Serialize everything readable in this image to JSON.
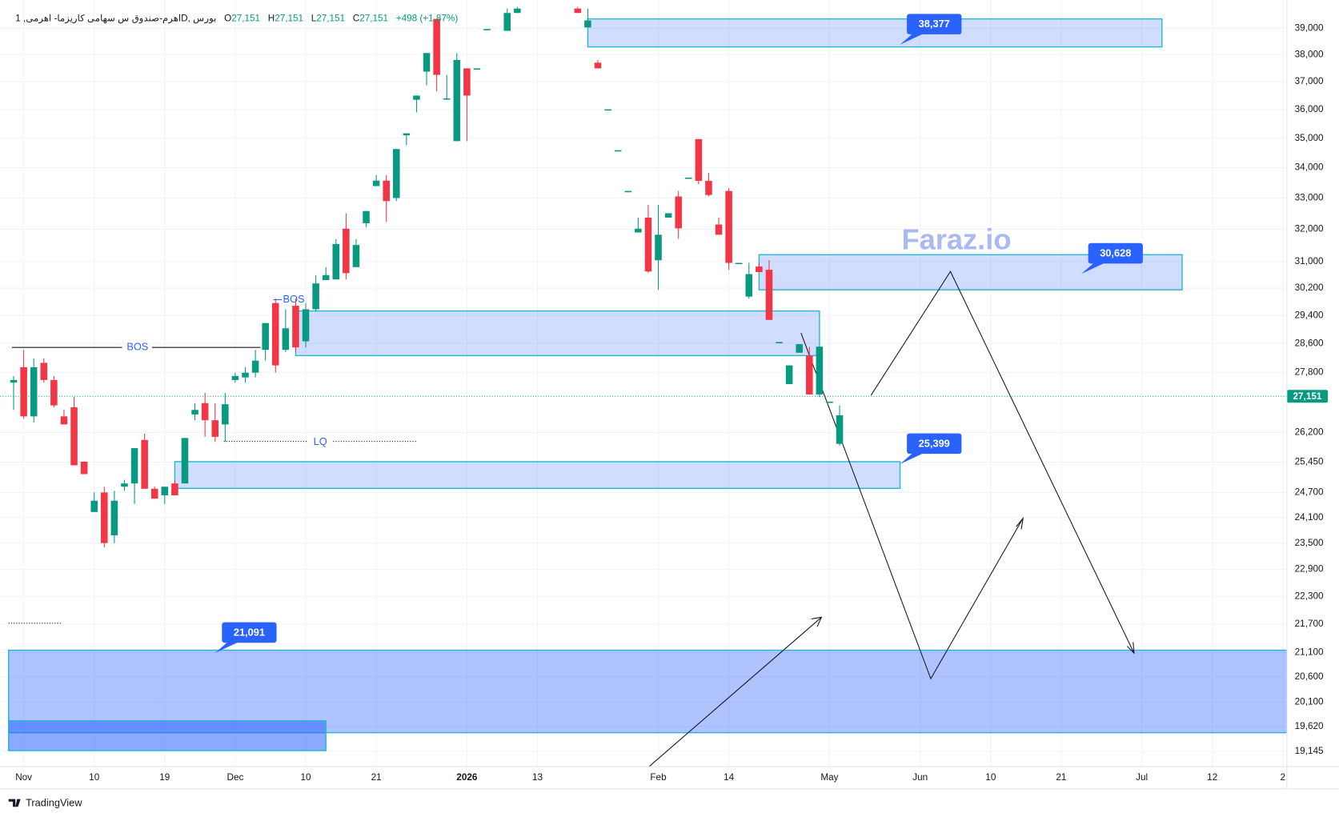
{
  "chart_data": {
    "type": "candlestick",
    "header": {
      "symbol": "اهرم-صندوق س سهامی کاریزما- اهرمی, 1D, بورس",
      "ohlc": [
        {
          "key": "O",
          "value": "27,151"
        },
        {
          "key": "H",
          "value": "27,151"
        },
        {
          "key": "L",
          "value": "27,151"
        },
        {
          "key": "C",
          "value": "27,151"
        }
      ],
      "change": "+498 (+1.87%)"
    },
    "up_color": "#089981",
    "down_color": "#f23645",
    "x": [
      0,
      1,
      2,
      3,
      4,
      5,
      6,
      7,
      8,
      9,
      10,
      11,
      12,
      13,
      14,
      15,
      16,
      17,
      18,
      19,
      20,
      21,
      22,
      23,
      24,
      25,
      26,
      27,
      28,
      29,
      30,
      31,
      32,
      33,
      34,
      35,
      36,
      37,
      38,
      39,
      40,
      41,
      42,
      43,
      44,
      45,
      46,
      47,
      49,
      50,
      56,
      57,
      58,
      59,
      60,
      61,
      62,
      63,
      64,
      65,
      66,
      67,
      68,
      69,
      70,
      71,
      72,
      73,
      74,
      75,
      76,
      77,
      78,
      79,
      80,
      81,
      82
    ],
    "open": [
      27520,
      27940,
      26620,
      28060,
      27590,
      26620,
      26860,
      25460,
      24230,
      24700,
      23680,
      24840,
      24920,
      26010,
      24790,
      24630,
      24920,
      24920,
      26670,
      26970,
      26520,
      26410,
      27590,
      27660,
      27790,
      28420,
      29760,
      28420,
      29680,
      28660,
      29580,
      30440,
      30460,
      32020,
      30830,
      32190,
      33390,
      33570,
      33000,
      35100,
      36350,
      37370,
      39360,
      36400,
      34900,
      37490,
      37490,
      38970,
      38900,
      39590,
      39760,
      39030,
      37700,
      36010,
      34590,
      33230,
      31900,
      32370,
      31040,
      32370,
      33050,
      33670,
      34970,
      33560,
      32150,
      33230,
      30960,
      29950,
      30850,
      30750,
      28640,
      27480,
      28340,
      28260,
      27200,
      27010,
      25910
    ],
    "high": [
      27700,
      28420,
      28180,
      28180,
      27700,
      26790,
      27130,
      25460,
      24700,
      24840,
      24740,
      25010,
      25800,
      26170,
      24840,
      24840,
      25010,
      26060,
      26970,
      27240,
      26970,
      27240,
      27790,
      27940,
      28420,
      29180,
      29890,
      29580,
      29890,
      29760,
      30590,
      30830,
      31690,
      32510,
      31690,
      32580,
      33750,
      33750,
      34630,
      35170,
      36500,
      38060,
      39360,
      37250,
      38060,
      37490,
      37490,
      38970,
      39760,
      39830,
      39830,
      39760,
      37800,
      36010,
      34590,
      33230,
      32370,
      32780,
      32780,
      32510,
      33230,
      33670,
      34970,
      33820,
      32370,
      33320,
      30960,
      30960,
      30960,
      31040,
      28640,
      27990,
      28580,
      28510,
      28510,
      27010,
      26910
    ],
    "low": [
      26790,
      26560,
      26460,
      27520,
      26860,
      26410,
      25370,
      25150,
      24230,
      23400,
      23500,
      24740,
      24420,
      24790,
      24550,
      24420,
      24630,
      24920,
      26520,
      26090,
      25960,
      25960,
      27520,
      27520,
      27660,
      28120,
      27790,
      28360,
      28360,
      28490,
      29510,
      30440,
      30460,
      30460,
      30830,
      32070,
      33390,
      32230,
      32900,
      34760,
      35900,
      36870,
      36650,
      36350,
      34900,
      34900,
      37490,
      38970,
      38900,
      39590,
      39590,
      39030,
      37490,
      36010,
      34590,
      33230,
      31900,
      30650,
      30150,
      32370,
      31700,
      33670,
      33450,
      33050,
      31830,
      30750,
      30960,
      29890,
      30680,
      29270,
      28640,
      27480,
      28340,
      27200,
      27130,
      27010,
      25860
    ],
    "close": [
      27590,
      26620,
      27940,
      27590,
      26910,
      26410,
      25370,
      25150,
      24500,
      23500,
      24500,
      24920,
      25800,
      24790,
      24550,
      24840,
      24630,
      26060,
      26790,
      26520,
      26090,
      26940,
      27700,
      27790,
      28120,
      29180,
      27990,
      29030,
      28490,
      29580,
      30340,
      30590,
      31540,
      30650,
      31510,
      32580,
      33570,
      32900,
      34630,
      35170,
      36500,
      38060,
      37250,
      36400,
      37800,
      36500,
      37490,
      38970,
      39590,
      39760,
      39590,
      39300,
      37490,
      36010,
      34590,
      33230,
      32020,
      30700,
      31830,
      32510,
      32030,
      33670,
      33560,
      33100,
      31830,
      30960,
      30960,
      30620,
      30680,
      29270,
      28640,
      27990,
      28580,
      27200,
      28510,
      27010,
      26650
    ],
    "xlim": [
      -0.5,
      126.4
    ],
    "ylim": [
      18860,
      39830
    ],
    "log_scale": true,
    "grid": true,
    "xticks": [
      {
        "value": 1,
        "label": "Nov"
      },
      {
        "value": 8,
        "label": "10"
      },
      {
        "value": 15,
        "label": "19"
      },
      {
        "value": 22,
        "label": "Dec"
      },
      {
        "value": 29,
        "label": "10"
      },
      {
        "value": 36,
        "label": "21"
      },
      {
        "value": 45,
        "label": "2026",
        "bold": true
      },
      {
        "value": 52,
        "label": "13"
      },
      {
        "value": 64,
        "label": "Feb"
      },
      {
        "value": 71,
        "label": "14"
      },
      {
        "value": 81,
        "label": "May"
      },
      {
        "value": 90,
        "label": "Jun"
      },
      {
        "value": 97,
        "label": "10"
      },
      {
        "value": 104,
        "label": "21"
      },
      {
        "value": 112,
        "label": "Jul"
      },
      {
        "value": 119,
        "label": "12"
      },
      {
        "value": 126,
        "label": "2"
      }
    ],
    "yticks": [
      {
        "value": 39000,
        "label": "39,000"
      },
      {
        "value": 38000,
        "label": "38,000"
      },
      {
        "value": 37000,
        "label": "37,000"
      },
      {
        "value": 36000,
        "label": "36,000"
      },
      {
        "value": 35000,
        "label": "35,000"
      },
      {
        "value": 34000,
        "label": "34,000"
      },
      {
        "value": 33000,
        "label": "33,000"
      },
      {
        "value": 32000,
        "label": "32,000"
      },
      {
        "value": 31000,
        "label": "31,000"
      },
      {
        "value": 30200,
        "label": "30,200"
      },
      {
        "value": 29400,
        "label": "29,400"
      },
      {
        "value": 28600,
        "label": "28,600"
      },
      {
        "value": 27800,
        "label": "27,800"
      },
      {
        "value": 26200,
        "label": "26,200"
      },
      {
        "value": 25450,
        "label": "25,450"
      },
      {
        "value": 24700,
        "label": "24,700"
      },
      {
        "value": 24100,
        "label": "24,100"
      },
      {
        "value": 23500,
        "label": "23,500"
      },
      {
        "value": 22900,
        "label": "22,900"
      },
      {
        "value": 22300,
        "label": "22,300"
      },
      {
        "value": 21700,
        "label": "21,700"
      },
      {
        "value": 21100,
        "label": "21,100"
      },
      {
        "value": 20600,
        "label": "20,600"
      },
      {
        "value": 20100,
        "label": "20,100"
      },
      {
        "value": 19620,
        "label": "19,620"
      },
      {
        "value": 19145,
        "label": "19,145"
      }
    ],
    "last_price": {
      "value": 27151,
      "label": "27,151"
    },
    "zones": [
      {
        "x": [
          57,
          114
        ],
        "y": [
          38290,
          39360
        ],
        "color": "#2962ff",
        "opacity": 0.22
      },
      {
        "x": [
          74,
          116
        ],
        "y": [
          30150,
          31210
        ],
        "color": "#2962ff",
        "opacity": 0.22
      },
      {
        "x": [
          28,
          80
        ],
        "y": [
          28260,
          29530
        ],
        "color": "#2962ff",
        "opacity": 0.22
      },
      {
        "x": [
          16,
          88
        ],
        "y": [
          24800,
          25460
        ],
        "color": "#2962ff",
        "opacity": 0.22
      },
      {
        "x": [
          -0.5,
          126.4
        ],
        "y": [
          19500,
          21150
        ],
        "color": "#2962ff",
        "opacity": 0.38
      },
      {
        "x": [
          -0.5,
          31
        ],
        "y": [
          19160,
          19730
        ],
        "color": "#2962ff",
        "opacity": 0.55
      }
    ],
    "callouts": [
      {
        "x": 88,
        "value": 38377,
        "label": "38,377"
      },
      {
        "x": 106,
        "value": 30628,
        "label": "30,628"
      },
      {
        "x": 88,
        "value": 25399,
        "label": "25,399"
      },
      {
        "x": 20,
        "value": 21091,
        "label": "21,091"
      }
    ],
    "markers": [
      "BOS",
      "BOS",
      "LQ"
    ],
    "watermark": "Faraz.io",
    "branding": "TradingView"
  }
}
